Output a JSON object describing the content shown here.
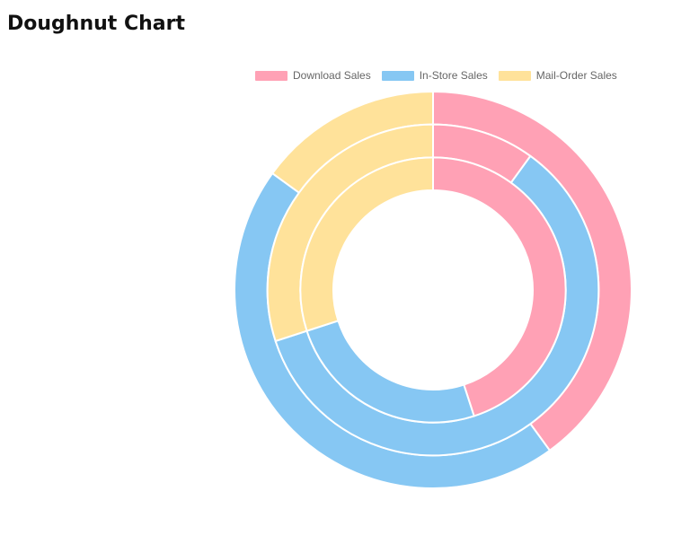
{
  "page": {
    "title": "Doughnut Chart"
  },
  "chart_data": {
    "type": "doughnut",
    "title": "",
    "legend_position": "top",
    "categories": [
      "Download Sales",
      "In-Store Sales",
      "Mail-Order Sales"
    ],
    "colors": [
      "#ffa1b5",
      "#86c7f3",
      "#ffe29a"
    ],
    "series": [
      {
        "values": [
          40,
          45,
          15
        ]
      },
      {
        "values": [
          10,
          60,
          30
        ]
      },
      {
        "values": [
          45,
          25,
          30
        ]
      }
    ]
  }
}
